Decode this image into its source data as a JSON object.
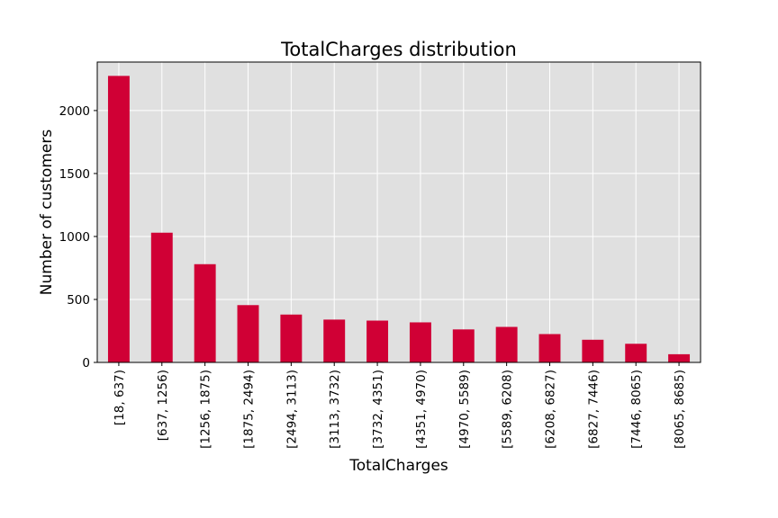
{
  "chart_data": {
    "type": "bar",
    "title": "TotalCharges distribution",
    "xlabel": "TotalCharges",
    "ylabel": "Number of customers",
    "categories": [
      "[18, 637)",
      "[637, 1256)",
      "[1256, 1875)",
      "[1875, 2494)",
      "[2494, 3113)",
      "[3113, 3732)",
      "[3732, 4351)",
      "[4351, 4970)",
      "[4970, 5589)",
      "[5589, 6208)",
      "[6208, 6827)",
      "[6827, 7446)",
      "[7446, 8065)",
      "[8065, 8685)"
    ],
    "values": [
      2275,
      1030,
      780,
      455,
      380,
      340,
      332,
      318,
      262,
      282,
      225,
      180,
      148,
      65
    ],
    "ylim": [
      0,
      2385
    ],
    "yticks": [
      0,
      500,
      1000,
      1500,
      2000
    ],
    "grid": true,
    "legend": "none",
    "colors": {
      "bar": "#d00035",
      "background": "#e0e0e0",
      "grid": "#ffffff",
      "frame": "#000000"
    }
  }
}
